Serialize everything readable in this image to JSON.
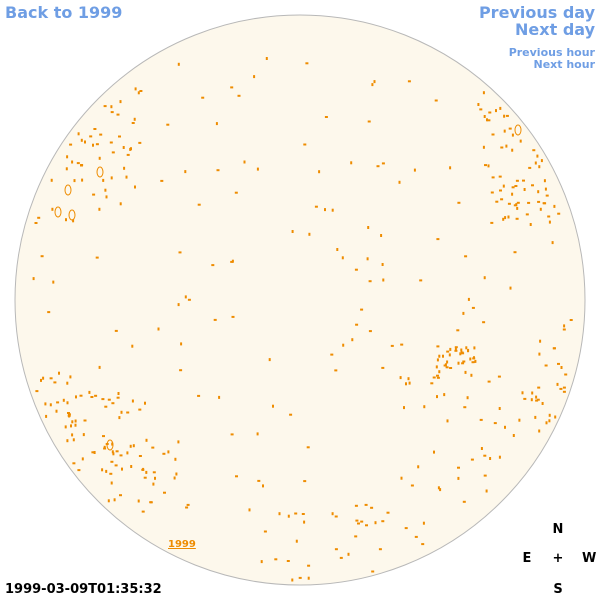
{
  "nav": {
    "back_label": "Back to 1999",
    "previous_day_label": "Previous day",
    "next_day_label": "Next day",
    "previous_hour_label": "Previous hour",
    "next_hour_label": "Next hour"
  },
  "disk": {
    "year_label": "1999",
    "fill_color": "#fdf8ec",
    "outline_color": "#b8b8b8",
    "feature_color": "#ee8c00"
  },
  "timestamp": "1999-03-09T01:35:32",
  "compass": {
    "north": "N",
    "east": "E",
    "center": "+",
    "west": "W",
    "south": "S"
  },
  "colors": {
    "link": "#6f9ee4",
    "text": "#000000"
  }
}
